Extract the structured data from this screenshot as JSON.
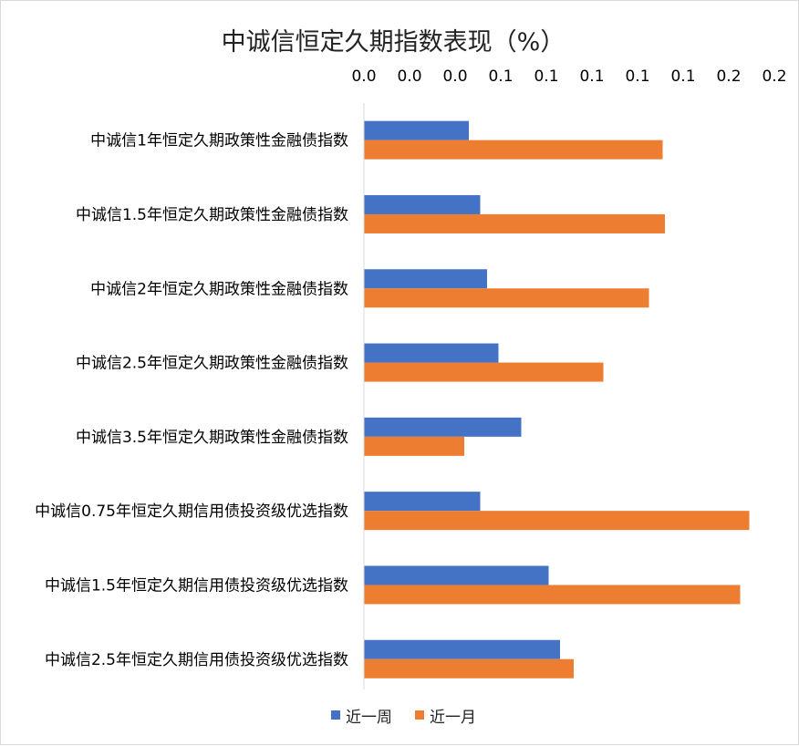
{
  "chart_data": {
    "type": "bar",
    "orientation": "horizontal",
    "title": "中诚信恒定久期指数表现（%）",
    "categories": [
      "中诚信1年恒定久期政策性金融债指数",
      "中诚信1.5年恒定久期政策性金融债指数",
      "中诚信2年恒定久期政策性金融债指数",
      "中诚信2.5年恒定久期政策性金融债指数",
      "中诚信3.5年恒定久期政策性金融债指数",
      "中诚信0.75年恒定久期信用债投资级优选指数",
      "中诚信1.5年恒定久期信用债投资级优选指数",
      "中诚信2.5年恒定久期信用债投资级优选指数"
    ],
    "series": [
      {
        "name": "近一周",
        "color": "#4472C4",
        "values": [
          0.046,
          0.051,
          0.054,
          0.059,
          0.069,
          0.051,
          0.081,
          0.086
        ]
      },
      {
        "name": "近一月",
        "color": "#ED7D31",
        "values": [
          0.131,
          0.132,
          0.125,
          0.105,
          0.044,
          0.169,
          0.165,
          0.092
        ]
      }
    ],
    "xlim": [
      0,
      0.18
    ],
    "x_ticks": [
      0,
      0.02,
      0.04,
      0.06,
      0.08,
      0.1,
      0.12,
      0.14,
      0.16,
      0.18
    ],
    "x_tick_labels": [
      "0.0",
      "0.0",
      "0.0",
      "0.1",
      "0.1",
      "0.1",
      "0.1",
      "0.1",
      "0.2",
      "0.2"
    ],
    "x_axis_position": "top",
    "grid": false,
    "legend_position": "bottom"
  }
}
